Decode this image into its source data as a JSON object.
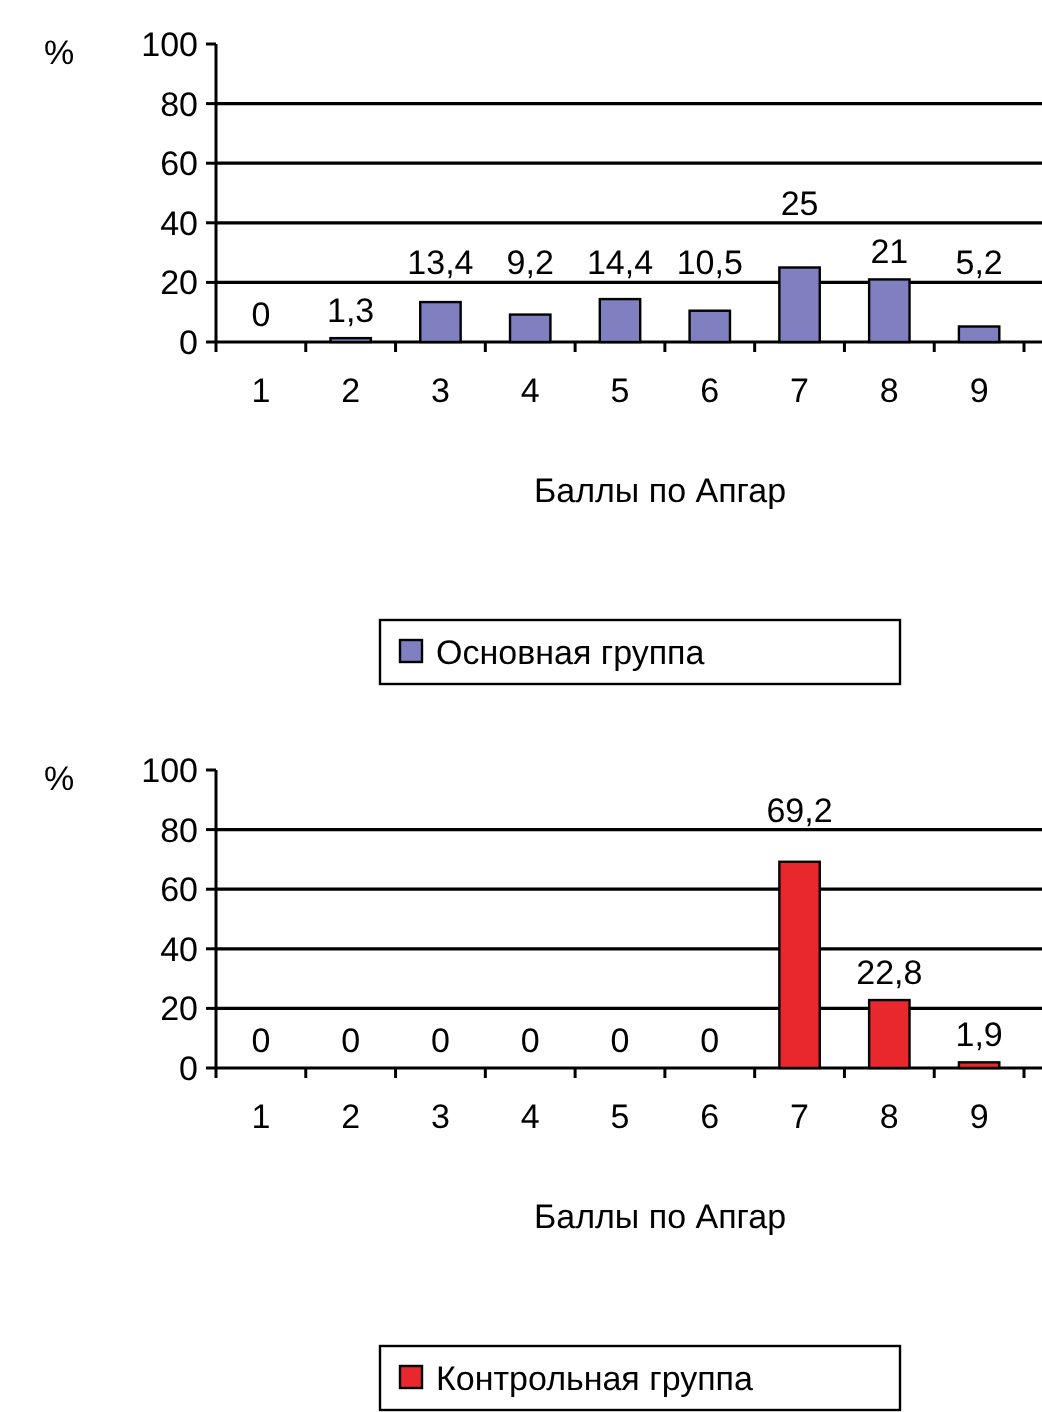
{
  "chart_data": [
    {
      "type": "bar",
      "xlabel": "Баллы по Апгар",
      "ylabel": "%",
      "categories": [
        "1",
        "2",
        "3",
        "4",
        "5",
        "6",
        "7",
        "8",
        "9"
      ],
      "series": [
        {
          "name": "Основная группа",
          "color": "#8080c0",
          "values": [
            0,
            1.3,
            13.4,
            9.2,
            14.4,
            10.5,
            25,
            21,
            5.2
          ],
          "value_labels": [
            "0",
            "1,3",
            "13,4",
            "9,2",
            "14,4",
            "10,5",
            "25",
            "21",
            "5,2"
          ]
        }
      ],
      "ylim": [
        0,
        100
      ],
      "yticks": [
        0,
        20,
        40,
        60,
        80,
        100
      ],
      "grid": "y",
      "legend": "bottom"
    },
    {
      "type": "bar",
      "xlabel": "Баллы по Апгар",
      "ylabel": "%",
      "categories": [
        "1",
        "2",
        "3",
        "4",
        "5",
        "6",
        "7",
        "8",
        "9"
      ],
      "series": [
        {
          "name": "Контрольная группа",
          "color": "#e8282c",
          "values": [
            0,
            0,
            0,
            0,
            0,
            0,
            69.2,
            22.8,
            1.9
          ],
          "value_labels": [
            "0",
            "0",
            "0",
            "0",
            "0",
            "0",
            "69,2",
            "22,8",
            "1,9"
          ]
        }
      ],
      "ylim": [
        0,
        100
      ],
      "yticks": [
        0,
        20,
        40,
        60,
        80,
        100
      ],
      "grid": "y",
      "legend": "bottom"
    }
  ]
}
